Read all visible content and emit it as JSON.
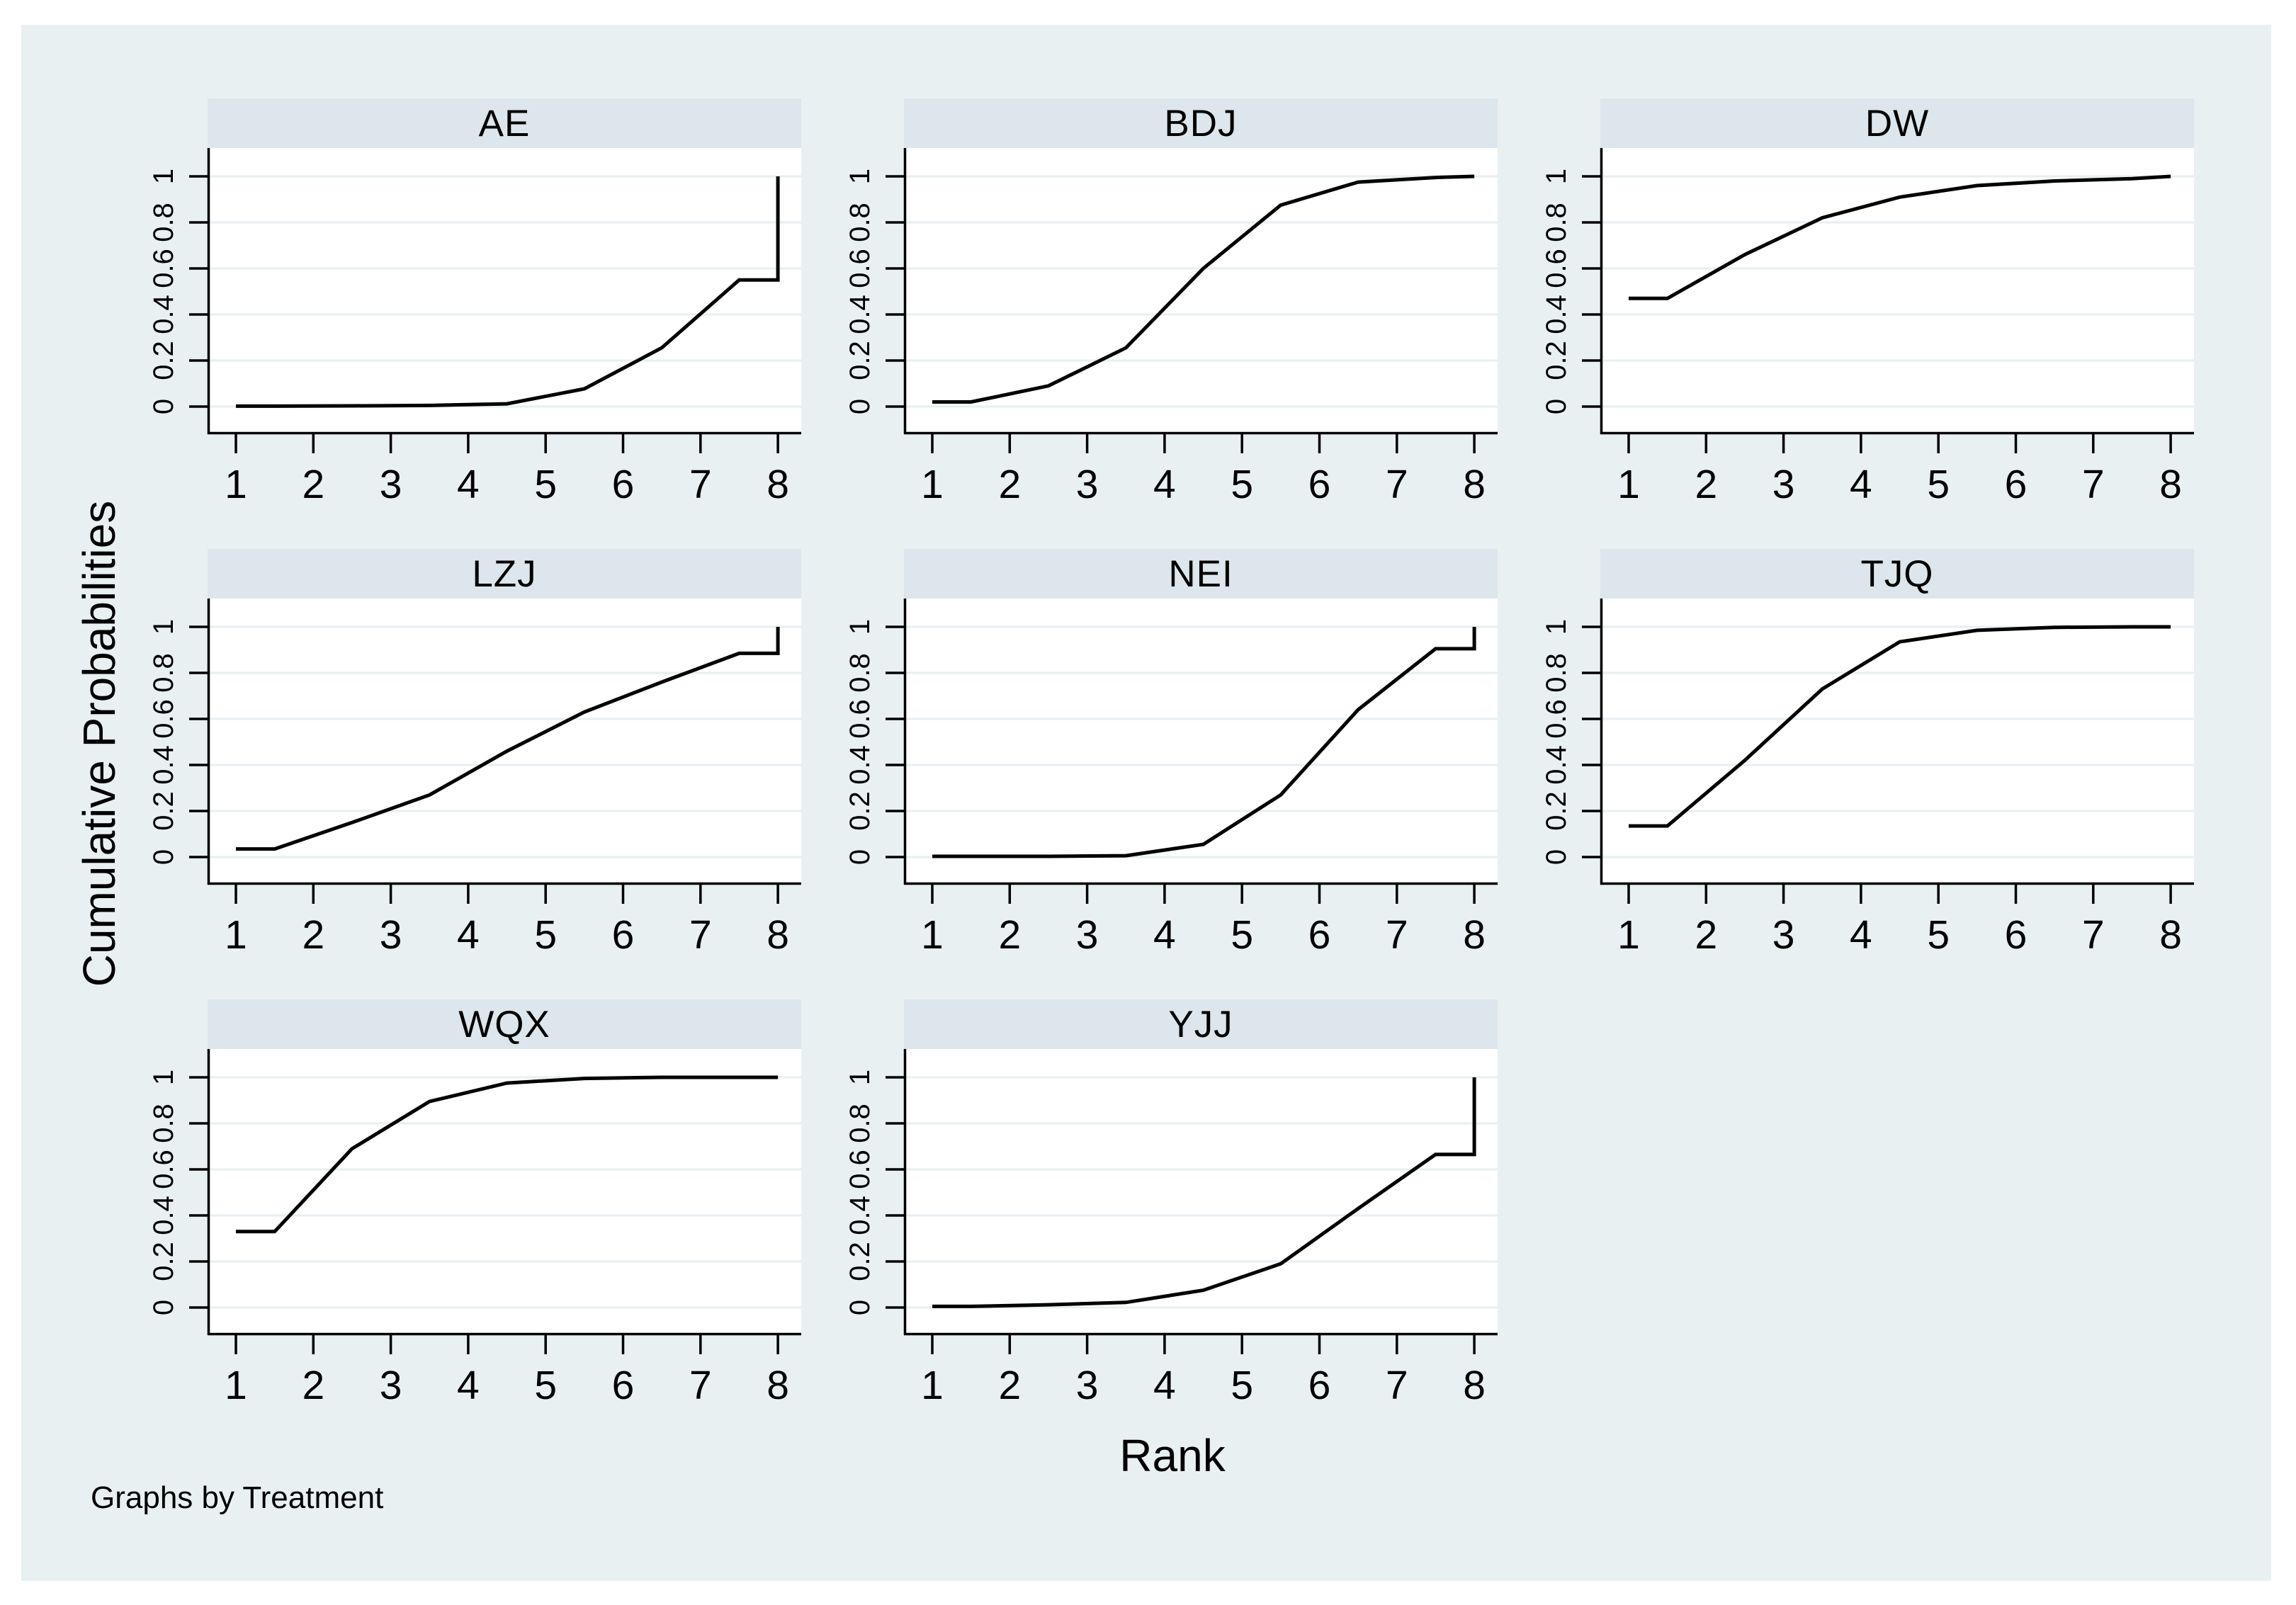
{
  "figure": {
    "ylabel": "Cumulative Probabilities",
    "xlabel": "Rank",
    "caption": "Graphs by Treatment",
    "colors": {
      "figure_background": "#e9f0f2",
      "panel_header": "#dce6ec",
      "plot_background": "#ffffff",
      "gridline": "#e7eff2",
      "axis": "#000000",
      "series_line": "#000000",
      "text": "#000000",
      "page_background": "#ffffff"
    }
  },
  "chart_data": {
    "type": "line",
    "title": "",
    "facet_by": "Treatment",
    "facet_note": "8 small-multiple panels, 3 per row, faceted by Treatment",
    "xlabel": "Rank",
    "ylabel": "Cumulative Probabilities",
    "grid": true,
    "legend": "none",
    "x": {
      "ticks": [
        1,
        2,
        3,
        4,
        5,
        6,
        7,
        8
      ],
      "range": [
        0.63,
        8.3
      ]
    },
    "y": {
      "ticks": [
        0,
        0.2,
        0.4,
        0.6,
        0.8,
        1
      ],
      "tick_labels": [
        "0",
        "0.2",
        "0.4",
        "0.6",
        "0.8",
        "1"
      ],
      "range": [
        -0.12,
        1.12
      ]
    },
    "panels": [
      {
        "title": "AE",
        "x": [
          1,
          1.5,
          2.5,
          3.5,
          4.5,
          5.5,
          6.5,
          7.5,
          8,
          8
        ],
        "y": [
          0.002,
          0.002,
          0.003,
          0.005,
          0.012,
          0.077,
          0.255,
          0.55,
          0.55,
          1.0
        ]
      },
      {
        "title": "BDJ",
        "x": [
          1,
          1.5,
          2.5,
          3.5,
          4.5,
          5.5,
          6.5,
          7.5,
          8
        ],
        "y": [
          0.02,
          0.02,
          0.09,
          0.255,
          0.6,
          0.875,
          0.975,
          0.995,
          1.0
        ]
      },
      {
        "title": "DW",
        "x": [
          1,
          1.5,
          2.5,
          3.5,
          4.5,
          5.5,
          6.5,
          7.5,
          8
        ],
        "y": [
          0.47,
          0.47,
          0.66,
          0.82,
          0.91,
          0.96,
          0.98,
          0.99,
          1.0
        ]
      },
      {
        "title": "LZJ",
        "x": [
          1,
          1.5,
          2.5,
          3.5,
          4.5,
          5.5,
          6.5,
          7.5,
          8,
          8
        ],
        "y": [
          0.035,
          0.035,
          0.15,
          0.27,
          0.46,
          0.63,
          0.76,
          0.885,
          0.885,
          1.0
        ]
      },
      {
        "title": "NEI",
        "x": [
          1,
          1.5,
          2.5,
          3.5,
          4.5,
          5.5,
          6.5,
          7.5,
          8,
          8
        ],
        "y": [
          0.003,
          0.003,
          0.003,
          0.006,
          0.055,
          0.27,
          0.64,
          0.905,
          0.905,
          1.0
        ]
      },
      {
        "title": "TJQ",
        "x": [
          1,
          1.5,
          2.5,
          3.5,
          4.5,
          5.5,
          6.5,
          7.5,
          8
        ],
        "y": [
          0.135,
          0.135,
          0.42,
          0.73,
          0.935,
          0.985,
          0.998,
          1.0,
          1.0
        ]
      },
      {
        "title": "WQX",
        "x": [
          1,
          1.5,
          2.5,
          3.5,
          4.5,
          5.5,
          6.5,
          7.5,
          8
        ],
        "y": [
          0.33,
          0.33,
          0.69,
          0.895,
          0.975,
          0.995,
          1.0,
          1.0,
          1.0
        ]
      },
      {
        "title": "YJJ",
        "x": [
          1,
          1.5,
          2.5,
          3.5,
          4.5,
          5.5,
          6.5,
          7.5,
          8,
          8
        ],
        "y": [
          0.005,
          0.005,
          0.012,
          0.022,
          0.075,
          0.19,
          0.43,
          0.665,
          0.665,
          1.0
        ]
      }
    ]
  }
}
